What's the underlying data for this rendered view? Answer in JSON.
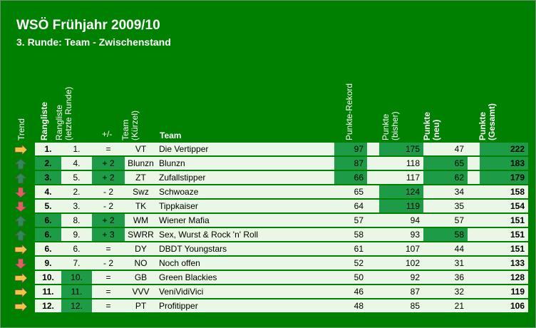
{
  "title": "WSÖ Frühjahr 2009/10",
  "subtitle": "3. Runde: Team - Zwischenstand",
  "headers": {
    "trend": "Trend",
    "rangliste": "Rangliste",
    "rangliste_letzte_1": "Rangliste",
    "rangliste_letzte_2": "(letzte Runde)",
    "plusminus": "+/-",
    "team_kuerzel_1": "Team",
    "team_kuerzel_2": "(Kürzel)",
    "team": "Team",
    "punkte_rekord": "Punkte-Rekord",
    "punkte_bisher_1": "Punkte",
    "punkte_bisher_2": "(bisher)",
    "punkte_neu_1": "Punkte",
    "punkte_neu_2": "(neu)",
    "punkte_gesamt_1": "Punkte",
    "punkte_gesamt_2": "(Gesamt)"
  },
  "colors": {
    "background": "#008000",
    "light": "#ebf7e6",
    "dark_highlight": "#1e9b46",
    "trend_up": "#2e8b57",
    "trend_down": "#e06060",
    "trend_same": "#f5c242"
  },
  "rows": [
    {
      "trend": "same",
      "rank": "1.",
      "prev": "1.",
      "diff": "=",
      "abbr": "VT",
      "team": "Die Vertipper",
      "record": "97",
      "bisher": "175",
      "neu": "47",
      "gesamt": "222",
      "hl": {
        "rank": false,
        "prev": false,
        "diff": false,
        "record": true,
        "bisher": true,
        "neu": false,
        "gesamt": true
      }
    },
    {
      "trend": "up",
      "rank": "2.",
      "prev": "4.",
      "diff": "+ 2",
      "abbr": "Blunzn",
      "team": "Blunzn",
      "record": "87",
      "bisher": "118",
      "neu": "65",
      "gesamt": "183",
      "hl": {
        "rank": true,
        "prev": false,
        "diff": true,
        "record": true,
        "bisher": false,
        "neu": true,
        "gesamt": true
      }
    },
    {
      "trend": "up",
      "rank": "3.",
      "prev": "5.",
      "diff": "+ 2",
      "abbr": "ZT",
      "team": "Zufallstipper",
      "record": "66",
      "bisher": "117",
      "neu": "62",
      "gesamt": "179",
      "hl": {
        "rank": true,
        "prev": false,
        "diff": true,
        "record": true,
        "bisher": false,
        "neu": true,
        "gesamt": true
      }
    },
    {
      "trend": "down",
      "rank": "4.",
      "prev": "2.",
      "diff": "- 2",
      "abbr": "Swz",
      "team": "Schwoaze",
      "record": "65",
      "bisher": "124",
      "neu": "34",
      "gesamt": "158",
      "hl": {
        "rank": false,
        "prev": false,
        "diff": false,
        "record": false,
        "bisher": true,
        "neu": false,
        "gesamt": false
      }
    },
    {
      "trend": "down",
      "rank": "5.",
      "prev": "3.",
      "diff": "- 2",
      "abbr": "TK",
      "team": "Tippkaiser",
      "record": "64",
      "bisher": "119",
      "neu": "35",
      "gesamt": "154",
      "hl": {
        "rank": false,
        "prev": false,
        "diff": false,
        "record": false,
        "bisher": true,
        "neu": false,
        "gesamt": false
      }
    },
    {
      "trend": "up",
      "rank": "6.",
      "prev": "8.",
      "diff": "+ 2",
      "abbr": "WM",
      "team": "Wiener Mafia",
      "record": "57",
      "bisher": "94",
      "neu": "57",
      "gesamt": "151",
      "hl": {
        "rank": true,
        "prev": false,
        "diff": true,
        "record": false,
        "bisher": false,
        "neu": false,
        "gesamt": false
      }
    },
    {
      "trend": "up",
      "rank": "6.",
      "prev": "9.",
      "diff": "+ 3",
      "abbr": "SWRR",
      "team": "Sex, Wurst & Rock 'n' Roll",
      "record": "58",
      "bisher": "93",
      "neu": "58",
      "gesamt": "151",
      "hl": {
        "rank": true,
        "prev": false,
        "diff": true,
        "record": false,
        "bisher": false,
        "neu": true,
        "gesamt": false
      }
    },
    {
      "trend": "same",
      "rank": "6.",
      "prev": "6.",
      "diff": "=",
      "abbr": "DY",
      "team": "DBDT Youngstars",
      "record": "61",
      "bisher": "107",
      "neu": "44",
      "gesamt": "151",
      "hl": {
        "rank": false,
        "prev": false,
        "diff": false,
        "record": false,
        "bisher": false,
        "neu": false,
        "gesamt": false
      }
    },
    {
      "trend": "down",
      "rank": "9.",
      "prev": "7.",
      "diff": "- 2",
      "abbr": "NO",
      "team": "Noch offen",
      "record": "52",
      "bisher": "102",
      "neu": "31",
      "gesamt": "133",
      "hl": {
        "rank": false,
        "prev": false,
        "diff": false,
        "record": false,
        "bisher": false,
        "neu": false,
        "gesamt": false
      }
    },
    {
      "trend": "same",
      "rank": "10.",
      "prev": "10.",
      "diff": "=",
      "abbr": "GB",
      "team": "Green Blackies",
      "record": "50",
      "bisher": "92",
      "neu": "36",
      "gesamt": "128",
      "hl": {
        "rank": false,
        "prev": true,
        "diff": false,
        "record": false,
        "bisher": false,
        "neu": false,
        "gesamt": false
      }
    },
    {
      "trend": "same",
      "rank": "11.",
      "prev": "11.",
      "diff": "=",
      "abbr": "VVV",
      "team": "VeniVidiVici",
      "record": "46",
      "bisher": "87",
      "neu": "32",
      "gesamt": "119",
      "hl": {
        "rank": false,
        "prev": true,
        "diff": false,
        "record": false,
        "bisher": false,
        "neu": false,
        "gesamt": false
      }
    },
    {
      "trend": "same",
      "rank": "12.",
      "prev": "12.",
      "diff": "=",
      "abbr": "PT",
      "team": "Profitipper",
      "record": "48",
      "bisher": "85",
      "neu": "21",
      "gesamt": "106",
      "hl": {
        "rank": false,
        "prev": true,
        "diff": false,
        "record": false,
        "bisher": false,
        "neu": false,
        "gesamt": false
      }
    }
  ]
}
